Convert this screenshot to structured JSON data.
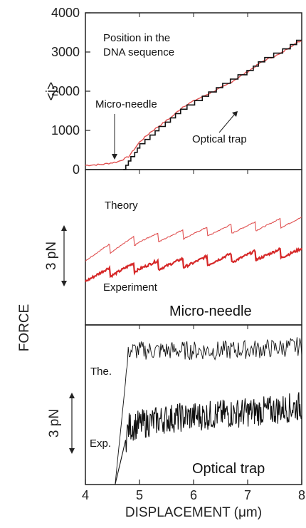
{
  "chart_data": [
    {
      "type": "line",
      "ylabel": "<j>",
      "ylim": [
        0,
        4000
      ],
      "yticks": [
        "0",
        "1000",
        "2000",
        "3000",
        "4000"
      ],
      "xlim": [
        4,
        8
      ],
      "annotations": [
        "Position in the",
        "DNA sequence",
        "Micro-needle",
        "Optical trap"
      ],
      "series": [
        {
          "name": "Micro-needle",
          "color": "#e05050",
          "x": [
            4.0,
            4.3,
            4.6,
            4.8,
            5.0,
            5.2,
            5.4,
            5.6,
            5.8,
            6.0,
            6.3,
            6.6,
            7.0,
            7.3,
            7.6,
            7.8,
            8.0
          ],
          "y": [
            110,
            130,
            200,
            330,
            700,
            950,
            1150,
            1350,
            1600,
            1750,
            1950,
            2150,
            2500,
            2780,
            2950,
            3150,
            3300
          ]
        },
        {
          "name": "Optical trap",
          "color": "#111111",
          "x": [
            4.7,
            5.0,
            5.2,
            5.4,
            5.6,
            5.8,
            6.0,
            6.3,
            6.6,
            7.0,
            7.3,
            7.6,
            7.8,
            8.0
          ],
          "y": [
            0,
            600,
            850,
            1100,
            1300,
            1550,
            1700,
            1950,
            2200,
            2500,
            2800,
            3000,
            3150,
            3350
          ]
        }
      ]
    },
    {
      "type": "line",
      "title": "Micro-needle",
      "scale_bar": "3 pN",
      "xlim": [
        4,
        8
      ],
      "series": [
        {
          "name": "Theory",
          "color": "#e05050",
          "x": [
            4.0,
            5.0,
            6.0,
            7.0,
            8.0
          ],
          "y": [
            0.8,
            1.6,
            1.9,
            2.2,
            2.5
          ]
        },
        {
          "name": "Experiment",
          "color": "#d62828",
          "x": [
            4.0,
            5.0,
            6.0,
            7.0,
            8.0
          ],
          "y": [
            -0.2,
            0.3,
            0.5,
            0.8,
            1.0
          ]
        }
      ]
    },
    {
      "type": "line",
      "title": "Optical trap",
      "scale_bar": "3 pN",
      "xlim": [
        4,
        8
      ],
      "xticks": [
        "4",
        "5",
        "6",
        "7",
        "8"
      ],
      "xlabel": "DISPLACEMENT (μm)",
      "series": [
        {
          "name": "The.",
          "color": "#111111",
          "x": [
            4.55,
            4.8,
            5.5,
            6.5,
            7.5,
            8.0
          ],
          "y": [
            -3.5,
            2.8,
            2.8,
            2.8,
            2.9,
            3.0
          ]
        },
        {
          "name": "Exp.",
          "color": "#111111",
          "x": [
            4.55,
            4.8,
            5.5,
            6.5,
            7.5,
            8.0
          ],
          "y": [
            -3.5,
            -0.8,
            -0.4,
            -0.2,
            0.0,
            0.2
          ]
        }
      ]
    }
  ],
  "shared_ylabel": "FORCE"
}
